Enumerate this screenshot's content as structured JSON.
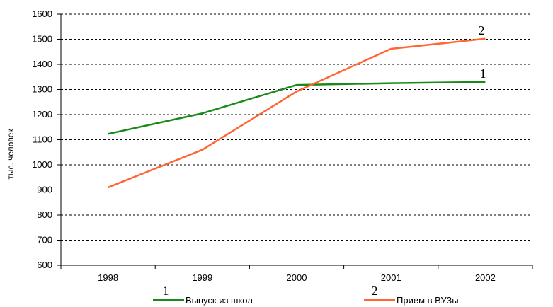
{
  "chart_data": {
    "type": "line",
    "title": "",
    "xlabel": "",
    "ylabel": "тыс. человек",
    "categories": [
      "1998",
      "1999",
      "2000",
      "2001",
      "2002"
    ],
    "ylim": [
      600,
      1600
    ],
    "y_ticks": [
      600,
      700,
      800,
      900,
      1000,
      1100,
      1200,
      1300,
      1400,
      1500,
      1600
    ],
    "grid": "horizontal dashed",
    "legend_position": "bottom",
    "series": [
      {
        "name": "Выпуск из школ",
        "marker": "1",
        "color": "#1a8a1a",
        "values": [
          1123,
          1205,
          1318,
          1325,
          1330
        ]
      },
      {
        "name": "Прием в ВУЗы",
        "marker": "2",
        "color": "#ff6633",
        "values": [
          910,
          1060,
          1292,
          1462,
          1502
        ]
      }
    ]
  }
}
